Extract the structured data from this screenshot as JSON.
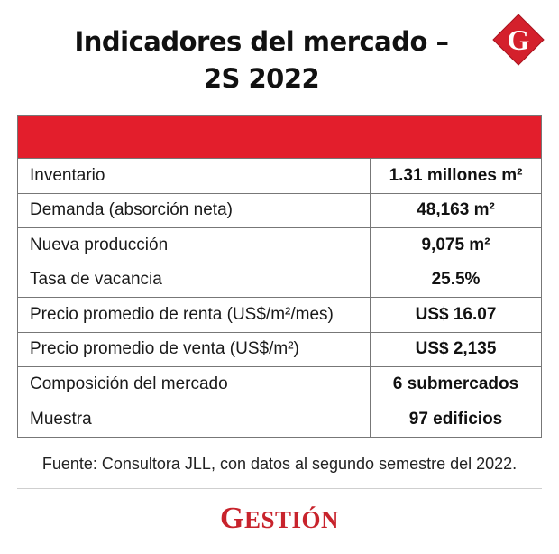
{
  "header": {
    "title_line1": "Indicadores del mercado –",
    "title_line2": "2S 2022"
  },
  "logo": {
    "icon": "gestion-g-logo-icon",
    "letter": "G",
    "color": "#d4202c"
  },
  "table": {
    "header_color": "#e31e2c",
    "rows": [
      {
        "label": "Inventario",
        "value": "1.31 millones m²"
      },
      {
        "label": "Demanda (absorción neta)",
        "value": "48,163 m²"
      },
      {
        "label": "Nueva producción",
        "value": "9,075 m²"
      },
      {
        "label": "Tasa de vacancia",
        "value": "25.5%"
      },
      {
        "label": "Precio promedio de renta (US$/m²/mes)",
        "value": "US$ 16.07"
      },
      {
        "label": "Precio promedio de venta (US$/m²)",
        "value": "US$ 2,135"
      },
      {
        "label": "Composición del mercado",
        "value": "6 submercados"
      },
      {
        "label": "Muestra",
        "value": "97 edificios"
      }
    ]
  },
  "footer": {
    "source": "Fuente: Consultora JLL, con datos al segundo semestre del 2022.",
    "brand_first": "G",
    "brand_rest": "ESTIÓN"
  }
}
